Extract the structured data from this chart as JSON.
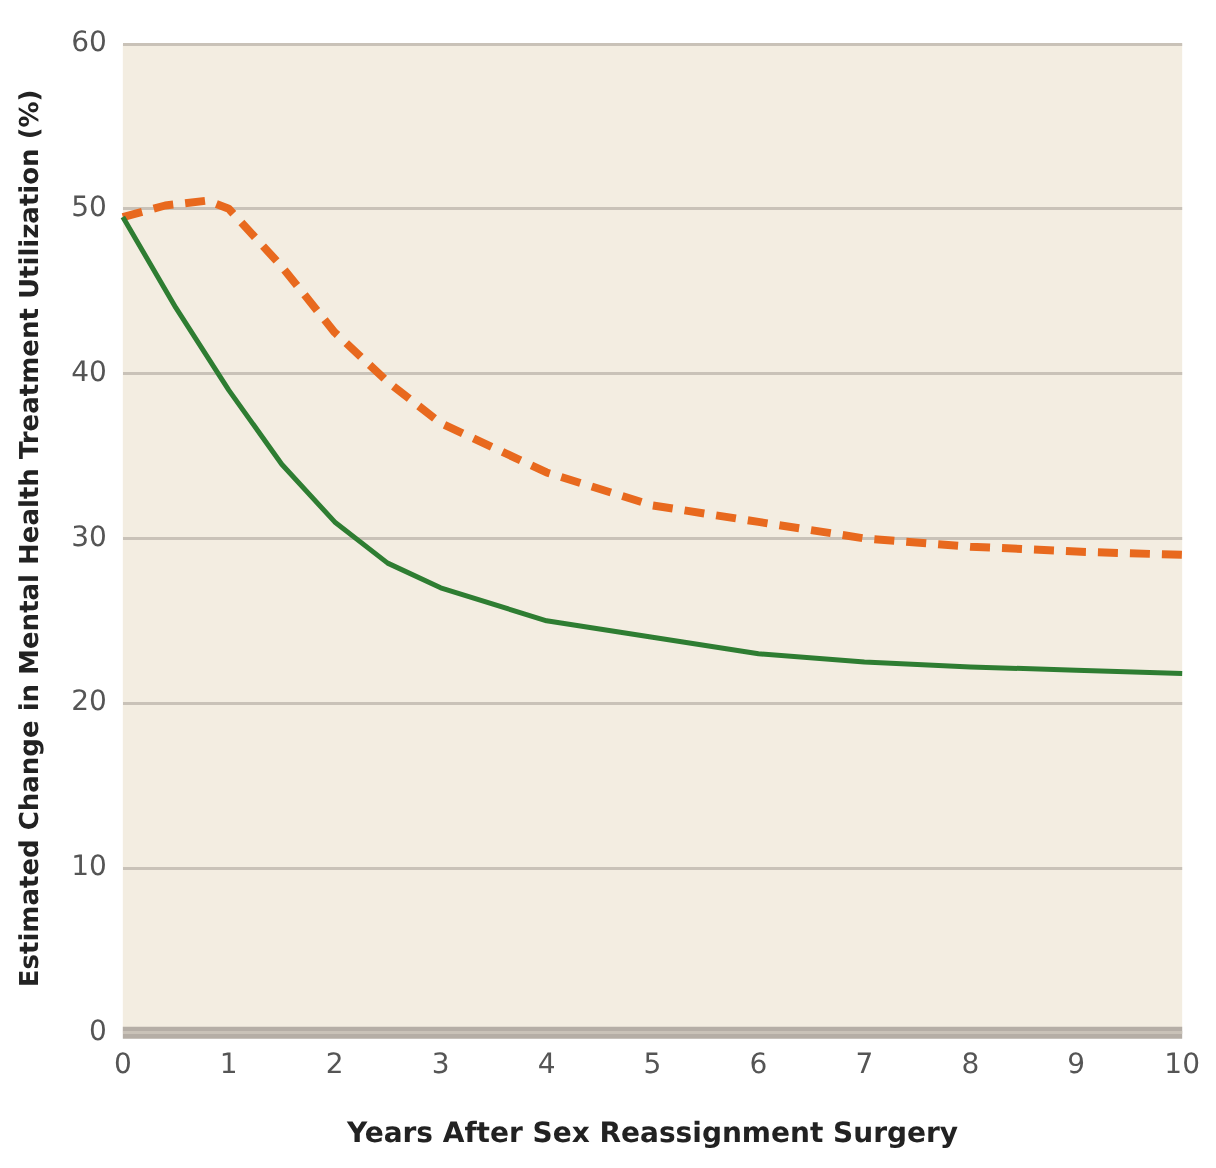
{
  "chart_data": {
    "type": "line",
    "xlabel": "Years After Sex Reassignment Surgery",
    "ylabel": "Estimated Change in Mental Health Treatment Utilization (%)",
    "xlim": [
      0,
      10
    ],
    "xticks": [
      0,
      1,
      2,
      3,
      4,
      5,
      6,
      7,
      8,
      9,
      10
    ],
    "ylim": [
      0,
      60
    ],
    "yticks": [
      0,
      10,
      20,
      30,
      40,
      50,
      60
    ],
    "grid": "y",
    "legend": false,
    "marker": "none",
    "series": [
      {
        "color": "#2e7d32",
        "line_style": "solid",
        "x": [
          0,
          0.5,
          1,
          1.5,
          2,
          2.5,
          3,
          4,
          5,
          6,
          7,
          8,
          9,
          10
        ],
        "values": [
          49.5,
          44,
          39,
          34.5,
          31,
          28.5,
          27,
          25,
          24,
          23,
          22.5,
          22.2,
          22,
          21.8
        ]
      },
      {
        "color": "#e8691e",
        "line_style": "dashed",
        "x": [
          0,
          0.4,
          0.8,
          1,
          1.5,
          2,
          2.5,
          3,
          4,
          5,
          6,
          7,
          8,
          9,
          10
        ],
        "values": [
          49.5,
          50.2,
          50.5,
          50,
          46.5,
          42.5,
          39.5,
          37,
          34,
          32,
          31,
          30,
          29.5,
          29.2,
          29
        ]
      }
    ]
  }
}
